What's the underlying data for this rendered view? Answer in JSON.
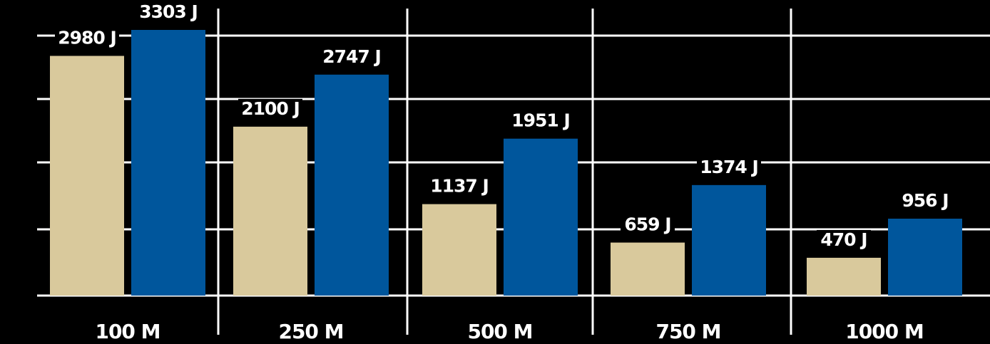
{
  "chart_data": {
    "type": "bar",
    "categories": [
      "100 M",
      "250 M",
      "500 M",
      "750 M",
      "1000 M"
    ],
    "series": [
      {
        "values": [
          2980,
          2100,
          1137,
          659,
          470
        ],
        "labels": [
          "2980 J",
          "2100 J",
          "1137 J",
          "659 J",
          "470 J"
        ],
        "color": "#d9c99c"
      },
      {
        "values": [
          3303,
          2747,
          1951,
          1374,
          956
        ],
        "labels": [
          "3303 J",
          "2747 J",
          "1951 J",
          "1374 J",
          "956 J"
        ],
        "color": "#00569c"
      }
    ],
    "ylim": [
      0,
      3850
    ],
    "grid": true,
    "legend": "none"
  },
  "colors": {
    "background": "#000000",
    "grid": "#ffffff",
    "text": "#ffffff"
  }
}
